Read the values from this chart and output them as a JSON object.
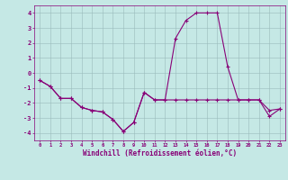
{
  "xlabel": "Windchill (Refroidissement éolien,°C)",
  "bg_color": "#c5e8e5",
  "line_color": "#880077",
  "grid_color": "#99bbbb",
  "xlim": [
    -0.5,
    23.5
  ],
  "ylim": [
    -4.5,
    4.5
  ],
  "yticks": [
    -4,
    -3,
    -2,
    -1,
    0,
    1,
    2,
    3,
    4
  ],
  "xticks": [
    0,
    1,
    2,
    3,
    4,
    5,
    6,
    7,
    8,
    9,
    10,
    11,
    12,
    13,
    14,
    15,
    16,
    17,
    18,
    19,
    20,
    21,
    22,
    23
  ],
  "line1_x": [
    0,
    1,
    2,
    3,
    4,
    5,
    6,
    7,
    8,
    9,
    10,
    11,
    12,
    13,
    14,
    15,
    16,
    17,
    18,
    19,
    20,
    21,
    22,
    23
  ],
  "line1_y": [
    -0.5,
    -0.9,
    -1.7,
    -1.7,
    -2.3,
    -2.5,
    -2.6,
    -3.1,
    -3.9,
    -3.3,
    -1.3,
    -1.8,
    -1.8,
    2.3,
    3.5,
    4.0,
    4.0,
    4.0,
    0.4,
    -1.8,
    -1.8,
    -1.8,
    -2.9,
    -2.4
  ],
  "line2_x": [
    0,
    1,
    2,
    3,
    4,
    5,
    6,
    7,
    8,
    9,
    10,
    11,
    12,
    13,
    14,
    15,
    16,
    17,
    18,
    19,
    20,
    21,
    22,
    23
  ],
  "line2_y": [
    -0.5,
    -0.9,
    -1.7,
    -1.7,
    -2.3,
    -2.5,
    -2.6,
    -3.1,
    -3.9,
    -3.3,
    -1.3,
    -1.8,
    -1.8,
    -1.8,
    -1.8,
    -1.8,
    -1.8,
    -1.8,
    -1.8,
    -1.8,
    -1.8,
    -1.8,
    -2.5,
    -2.4
  ]
}
